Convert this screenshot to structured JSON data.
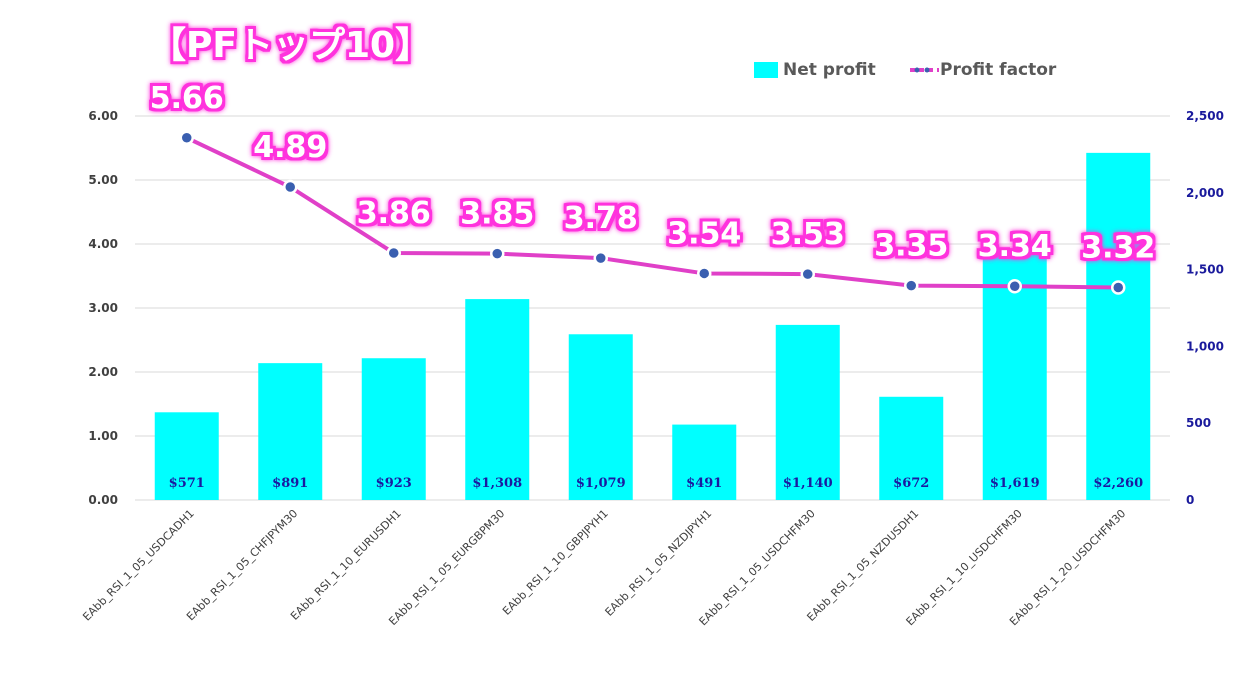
{
  "title": "【PFトップ10】",
  "legend": {
    "bar_label": "Net profit",
    "line_label": "Profit factor",
    "placement": "top-right"
  },
  "colors": {
    "bar": "#00ffff",
    "line": "#e040c8",
    "marker": "#3a5fb0",
    "left_tick": "#404040",
    "right_tick": "#1a1a9c",
    "bar_label": "#1a1aa0",
    "title_fill": "#ffffff",
    "title_glow": "#ff33dd",
    "grid": "#d9d9d9"
  },
  "chart_data": {
    "type": "bar",
    "categories": [
      "EAbb_RSI_1_05_USDCADH1",
      "EAbb_RSI_1_05_CHFJPYM30",
      "EAbb_RSI_1_10_EURUSDH1",
      "EAbb_RSI_1_05_EURGBPM30",
      "EAbb_RSI_1_10_GBPJPYH1",
      "EAbb_RSI_1_05_NZDJPYH1",
      "EAbb_RSI_1_05_USDCHFM30",
      "EAbb_RSI_1_05_NZDUSDH1",
      "EAbb_RSI_1_10_USDCHFM30",
      "EAbb_RSI_1_20_USDCHFM30"
    ],
    "series": [
      {
        "name": "Net profit",
        "type": "bar",
        "axis": "right",
        "values": [
          571,
          891,
          923,
          1308,
          1079,
          491,
          1140,
          672,
          1619,
          2260
        ],
        "labels": [
          "$571",
          "$891",
          "$923",
          "$1,308",
          "$1,079",
          "$491",
          "$1,140",
          "$672",
          "$1,619",
          "$2,260"
        ]
      },
      {
        "name": "Profit factor",
        "type": "line",
        "axis": "left",
        "values": [
          5.66,
          4.89,
          3.86,
          3.85,
          3.78,
          3.54,
          3.53,
          3.35,
          3.34,
          3.32
        ],
        "labels": [
          "5.66",
          "4.89",
          "3.86",
          "3.85",
          "3.78",
          "3.54",
          "3.53",
          "3.35",
          "3.34",
          "3.32"
        ]
      }
    ],
    "left_axis": {
      "range": [
        0,
        6
      ],
      "ticks": [
        "0.00",
        "1.00",
        "2.00",
        "3.00",
        "4.00",
        "5.00",
        "6.00"
      ]
    },
    "right_axis": {
      "range": [
        0,
        2500
      ],
      "ticks": [
        "0",
        "500",
        "1,000",
        "1,500",
        "2,000",
        "2,500"
      ]
    },
    "grid": true
  }
}
